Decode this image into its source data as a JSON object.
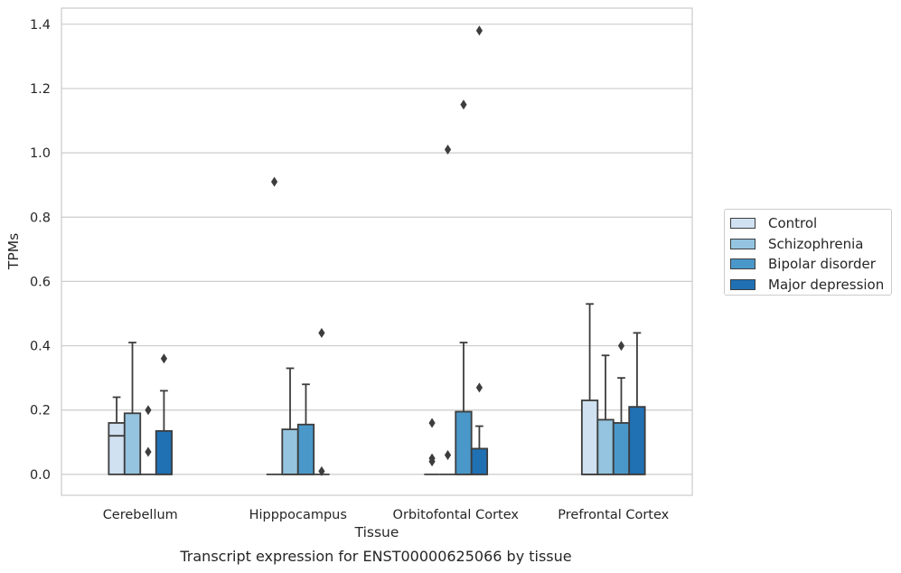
{
  "caption": "Transcript expression for ENST00000625066 by tissue",
  "chart_data": {
    "type": "box",
    "xlabel": "Tissue",
    "ylabel": "TPMs",
    "ylim": [
      -0.065,
      1.45
    ],
    "yticks": [
      "0.0",
      "0.2",
      "0.4",
      "0.6",
      "0.8",
      "1.0",
      "1.2",
      "1.4"
    ],
    "grid": "horizontal",
    "legend_position": "right",
    "categories": [
      "Cerebellum",
      "Hipppocampus",
      "Orbitofontal Cortex",
      "Prefrontal Cortex"
    ],
    "series": [
      {
        "name": "Control",
        "color": "#d0e1f2",
        "boxes": [
          {
            "q1": 0.0,
            "median": 0.12,
            "q3": 0.16,
            "whisker_low": 0.0,
            "whisker_high": 0.24,
            "outliers": []
          },
          {
            "q1": 0.0,
            "median": 0.0,
            "q3": 0.0,
            "whisker_low": 0.0,
            "whisker_high": 0.0,
            "outliers": [
              0.91
            ]
          },
          {
            "q1": 0.0,
            "median": 0.0,
            "q3": 0.0,
            "whisker_low": 0.0,
            "whisker_high": 0.0,
            "outliers": [
              0.04,
              0.05,
              0.16
            ]
          },
          {
            "q1": 0.0,
            "median": 0.0,
            "q3": 0.23,
            "whisker_low": 0.0,
            "whisker_high": 0.53,
            "outliers": []
          }
        ]
      },
      {
        "name": "Schizophrenia",
        "color": "#94c4df",
        "boxes": [
          {
            "q1": 0.0,
            "median": 0.0,
            "q3": 0.19,
            "whisker_low": 0.0,
            "whisker_high": 0.41,
            "outliers": []
          },
          {
            "q1": 0.0,
            "median": 0.0,
            "q3": 0.14,
            "whisker_low": 0.0,
            "whisker_high": 0.33,
            "outliers": []
          },
          {
            "q1": 0.0,
            "median": 0.0,
            "q3": 0.0,
            "whisker_low": 0.0,
            "whisker_high": 0.0,
            "outliers": [
              0.06,
              1.01
            ]
          },
          {
            "q1": 0.0,
            "median": 0.0,
            "q3": 0.17,
            "whisker_low": 0.0,
            "whisker_high": 0.37,
            "outliers": []
          }
        ]
      },
      {
        "name": "Bipolar disorder",
        "color": "#4a98c9",
        "boxes": [
          {
            "q1": 0.0,
            "median": 0.0,
            "q3": 0.0,
            "whisker_low": 0.0,
            "whisker_high": 0.0,
            "outliers": [
              0.07,
              0.2
            ]
          },
          {
            "q1": 0.0,
            "median": 0.0,
            "q3": 0.155,
            "whisker_low": 0.0,
            "whisker_high": 0.28,
            "outliers": []
          },
          {
            "q1": 0.0,
            "median": 0.0,
            "q3": 0.195,
            "whisker_low": 0.0,
            "whisker_high": 0.41,
            "outliers": [
              1.15
            ]
          },
          {
            "q1": 0.0,
            "median": 0.0,
            "q3": 0.16,
            "whisker_low": 0.0,
            "whisker_high": 0.3,
            "outliers": [
              0.4
            ]
          }
        ]
      },
      {
        "name": "Major depression",
        "color": "#2070b4",
        "boxes": [
          {
            "q1": 0.0,
            "median": 0.0,
            "q3": 0.135,
            "whisker_low": 0.0,
            "whisker_high": 0.26,
            "outliers": [
              0.36
            ]
          },
          {
            "q1": 0.0,
            "median": 0.0,
            "q3": 0.0,
            "whisker_low": 0.0,
            "whisker_high": 0.0,
            "outliers": [
              0.01,
              0.44
            ]
          },
          {
            "q1": 0.0,
            "median": 0.0,
            "q3": 0.08,
            "whisker_low": 0.0,
            "whisker_high": 0.15,
            "outliers": [
              0.27,
              1.38
            ]
          },
          {
            "q1": 0.0,
            "median": 0.0,
            "q3": 0.21,
            "whisker_low": 0.0,
            "whisker_high": 0.44,
            "outliers": []
          }
        ]
      }
    ]
  }
}
